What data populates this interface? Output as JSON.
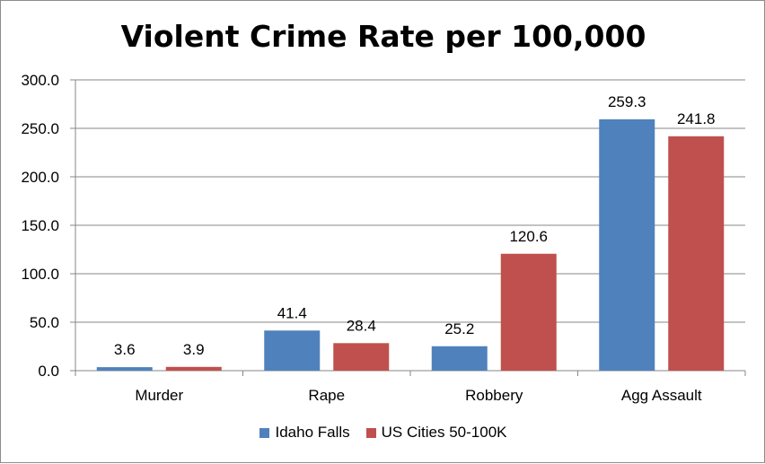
{
  "chart_data": {
    "type": "bar",
    "title": "Violent Crime Rate per 100,000",
    "xlabel": "",
    "ylabel": "",
    "categories": [
      "Murder",
      "Rape",
      "Robbery",
      "Agg Assault"
    ],
    "series": [
      {
        "name": "Idaho Falls",
        "color": "#4f81bd",
        "values": [
          3.6,
          41.4,
          25.2,
          259.3
        ]
      },
      {
        "name": "US Cities 50-100K",
        "color": "#c0504d",
        "values": [
          3.9,
          28.4,
          120.6,
          241.8
        ]
      }
    ],
    "ylim": [
      0,
      300
    ],
    "yticks": [
      "0.0",
      "50.0",
      "100.0",
      "150.0",
      "200.0",
      "250.0",
      "300.0"
    ],
    "grid": true,
    "legend_position": "bottom",
    "data_label_decimals": 1
  }
}
